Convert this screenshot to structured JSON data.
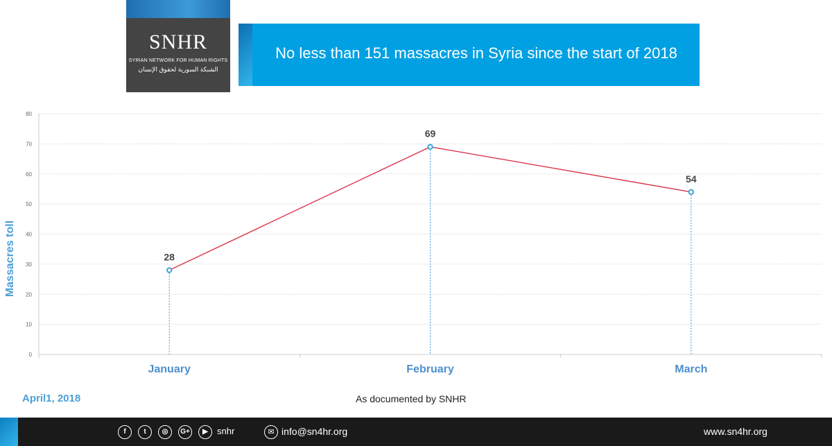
{
  "logo": {
    "wordmark": "SNHR",
    "subtitle_en": "SYRIAN NETWORK FOR HUMAN RIGHTS",
    "subtitle_ar": "الشبكة السورية لحقوق الإنسان"
  },
  "banner": {
    "title": "No less than 151 massacres in Syria since the start of 2018"
  },
  "chart_data": {
    "type": "line",
    "categories": [
      "January",
      "February",
      "March"
    ],
    "values": [
      28,
      69,
      54
    ],
    "data_labels": [
      "28",
      "69",
      "54"
    ],
    "ylabel": "Massacres toll",
    "ylim": [
      0,
      80
    ],
    "yticks": [
      0,
      10,
      20,
      30,
      40,
      50,
      60,
      70,
      80
    ],
    "grid": true,
    "line_color": "#d9344a",
    "marker_color": "#3aa6d6"
  },
  "date_text": "April1, 2018",
  "source_text": "As documented by SNHR",
  "footer": {
    "social_icons": [
      "facebook-icon",
      "twitter-icon",
      "instagram-icon",
      "google-plus-icon",
      "youtube-icon"
    ],
    "social_glyphs": [
      "f",
      "t",
      "◎",
      "G+",
      "▶"
    ],
    "handle": "snhr",
    "email": "info@sn4hr.org",
    "website": "www.sn4hr.org"
  }
}
